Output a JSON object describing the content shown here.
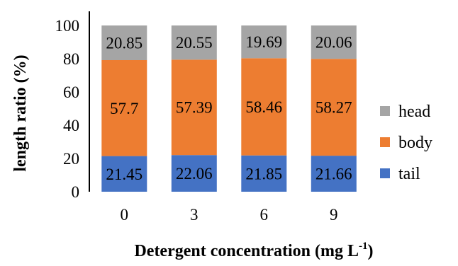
{
  "chart_data": {
    "type": "bar",
    "stacked": true,
    "title": "",
    "xlabel": "Detergent concentration (mg L",
    "xlabel_superscript": "-1",
    "xlabel_close": ")",
    "ylabel": "length ratio (%)",
    "categories": [
      "0",
      "3",
      "6",
      "9"
    ],
    "ylim": [
      0,
      100
    ],
    "yticks": [
      "0",
      "20",
      "40",
      "60",
      "80",
      "100"
    ],
    "grid": false,
    "legend_position": "right",
    "series": [
      {
        "name": "tail",
        "color": "#4472c4",
        "values": [
          21.45,
          22.06,
          21.85,
          21.66
        ]
      },
      {
        "name": "body",
        "color": "#ed7d31",
        "values": [
          57.7,
          57.39,
          58.46,
          58.27
        ]
      },
      {
        "name": "head",
        "color": "#a5a5a5",
        "values": [
          20.85,
          20.55,
          19.69,
          20.06
        ]
      }
    ],
    "data_labels": {
      "tail": [
        "21.45",
        "22.06",
        "21.85",
        "21.66"
      ],
      "body": [
        "57.7",
        "57.39",
        "58.46",
        "58.27"
      ],
      "head": [
        "20.85",
        "20.55",
        "19.69",
        "20.06"
      ]
    },
    "legend_order": [
      "head",
      "body",
      "tail"
    ]
  }
}
